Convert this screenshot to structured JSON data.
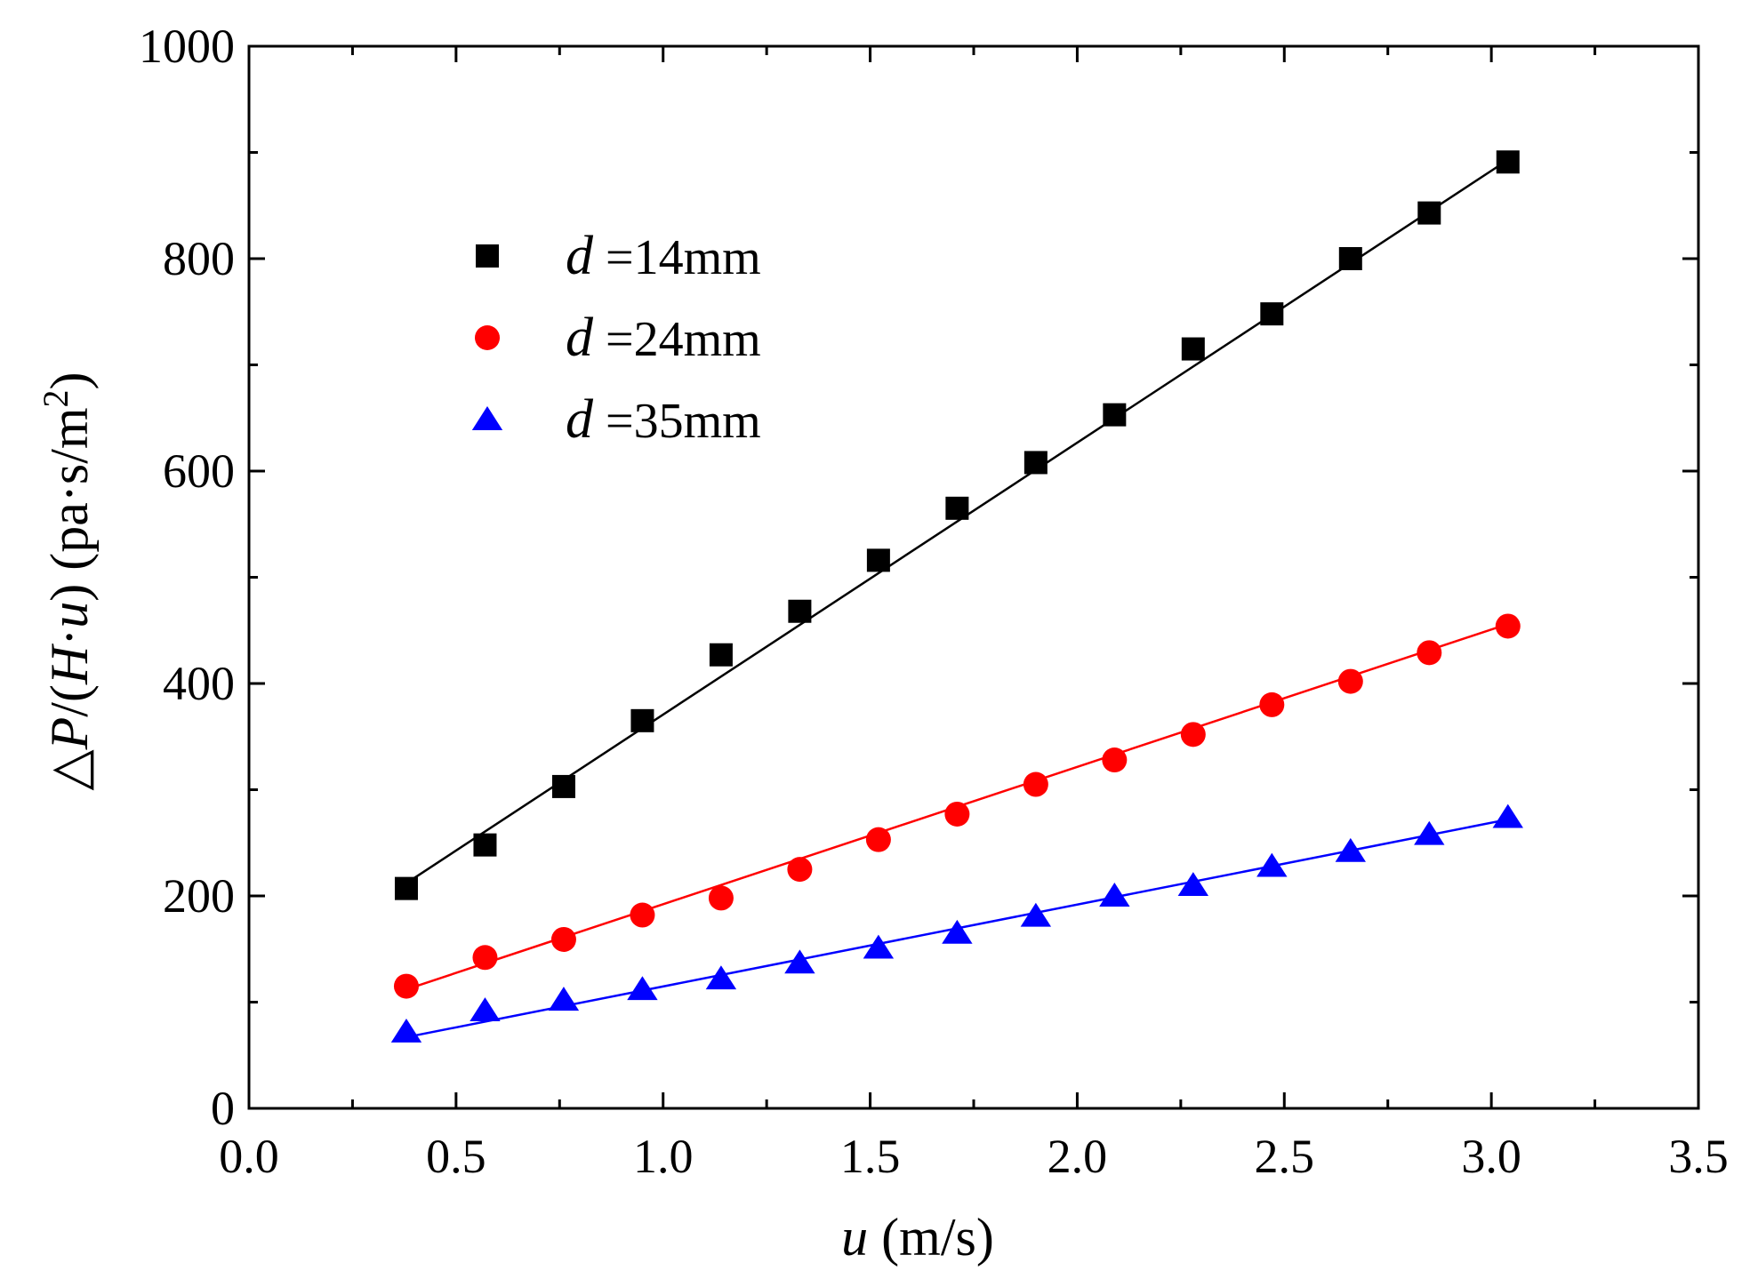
{
  "chart_data": {
    "type": "scatter",
    "title": "",
    "xlabel": {
      "symbol": "u",
      "unit": " (m/s)"
    },
    "ylabel": {
      "delta": "△",
      "p": "P",
      "slash": "/(",
      "h": "H",
      "dot": "·",
      "u": "u",
      "close": ")",
      "unit": " (pa·s/m",
      "sup": "2",
      "end": ")"
    },
    "xlim": [
      0.0,
      3.5
    ],
    "ylim": [
      0,
      1000
    ],
    "x_ticks": [
      "0.0",
      "0.5",
      "1.0",
      "1.5",
      "2.0",
      "2.5",
      "3.0",
      "3.5"
    ],
    "y_ticks": [
      "0",
      "200",
      "400",
      "600",
      "800",
      "1000"
    ],
    "x": [
      0.38,
      0.57,
      0.76,
      0.95,
      1.14,
      1.33,
      1.52,
      1.71,
      1.9,
      2.09,
      2.28,
      2.47,
      2.66,
      2.85,
      3.04
    ],
    "legend_position": "upper-left",
    "series": [
      {
        "name": "d =14mm",
        "legend_symbol": "d",
        "legend_text": " =14mm",
        "marker": "square",
        "color": "#000000",
        "values": [
          207,
          248,
          303,
          365,
          427,
          468,
          516,
          565,
          608,
          653,
          715,
          748,
          800,
          843,
          891
        ],
        "fit": [
          [
            0.38,
            212
          ],
          [
            3.04,
            893
          ]
        ]
      },
      {
        "name": "d =24mm",
        "legend_symbol": "d",
        "legend_text": " =24mm",
        "marker": "circle",
        "color": "#ff0000",
        "values": [
          115,
          142,
          159,
          182,
          198,
          225,
          253,
          277,
          305,
          328,
          352,
          380,
          402,
          429,
          454
        ],
        "fit": [
          [
            0.38,
            112
          ],
          [
            3.04,
            456
          ]
        ]
      },
      {
        "name": "d =35mm",
        "legend_symbol": "d",
        "legend_text": " =35mm",
        "marker": "triangle",
        "color": "#0000ff",
        "values": [
          72,
          92,
          102,
          112,
          122,
          137,
          151,
          165,
          181,
          200,
          210,
          228,
          242,
          258,
          274
        ],
        "fit": [
          [
            0.38,
            67
          ],
          [
            3.04,
            272
          ]
        ]
      }
    ]
  }
}
